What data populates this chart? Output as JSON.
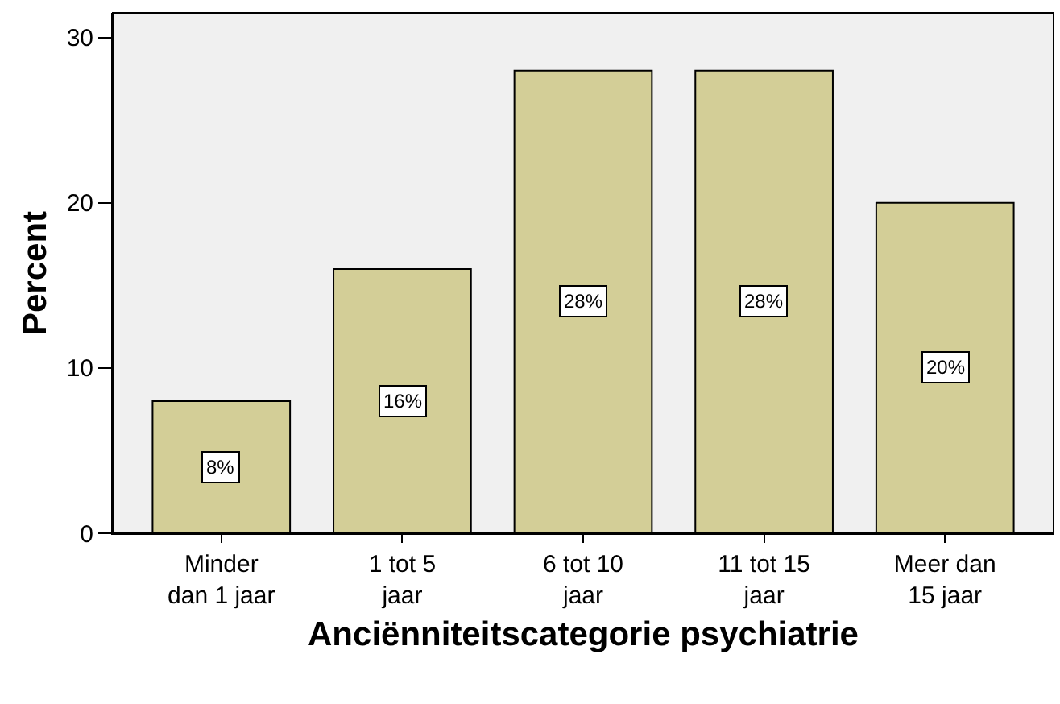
{
  "chart_data": {
    "type": "bar",
    "xlabel": "Anciënniteitscategorie psychiatrie",
    "ylabel": "Percent",
    "categories": [
      "Minder\ndan 1 jaar",
      "1 tot 5\njaar",
      "6 tot 10\njaar",
      "11 tot 15\njaar",
      "Meer dan\n15 jaar"
    ],
    "values": [
      8,
      16,
      28,
      28,
      20
    ],
    "value_labels": [
      "8%",
      "16%",
      "28%",
      "28%",
      "20%"
    ],
    "color": "#d3ce97",
    "ylim": [
      0,
      31.5
    ],
    "yticks": [
      0,
      10,
      20,
      30
    ],
    "grid": false
  }
}
